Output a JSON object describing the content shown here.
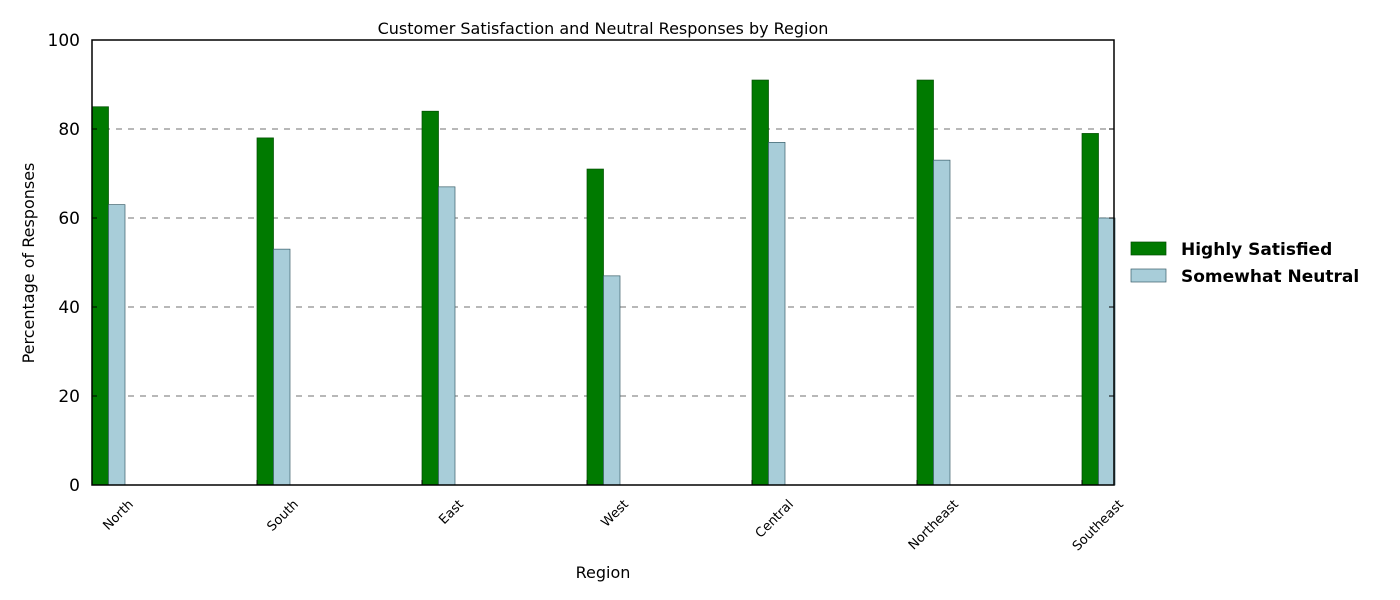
{
  "chart_data": {
    "type": "bar",
    "title": "Customer Satisfaction and Neutral Responses by Region",
    "xlabel": "Region",
    "ylabel": "Percentage of Responses",
    "categories": [
      "North",
      "South",
      "East",
      "West",
      "Central",
      "Northeast",
      "Southeast"
    ],
    "series": [
      {
        "name": "Highly Satisfied",
        "color": "#007a00",
        "values": [
          85,
          78,
          84,
          71,
          91,
          91,
          79
        ]
      },
      {
        "name": "Somewhat Neutral",
        "color": "#a8cdd9",
        "values": [
          63,
          53,
          67,
          47,
          77,
          73,
          60
        ]
      }
    ],
    "ylim": [
      0,
      100
    ],
    "yticks": [
      0,
      20,
      40,
      60,
      80,
      100
    ],
    "grid": {
      "y": true,
      "style": "dashed"
    },
    "legend": {
      "placement": "right"
    }
  }
}
